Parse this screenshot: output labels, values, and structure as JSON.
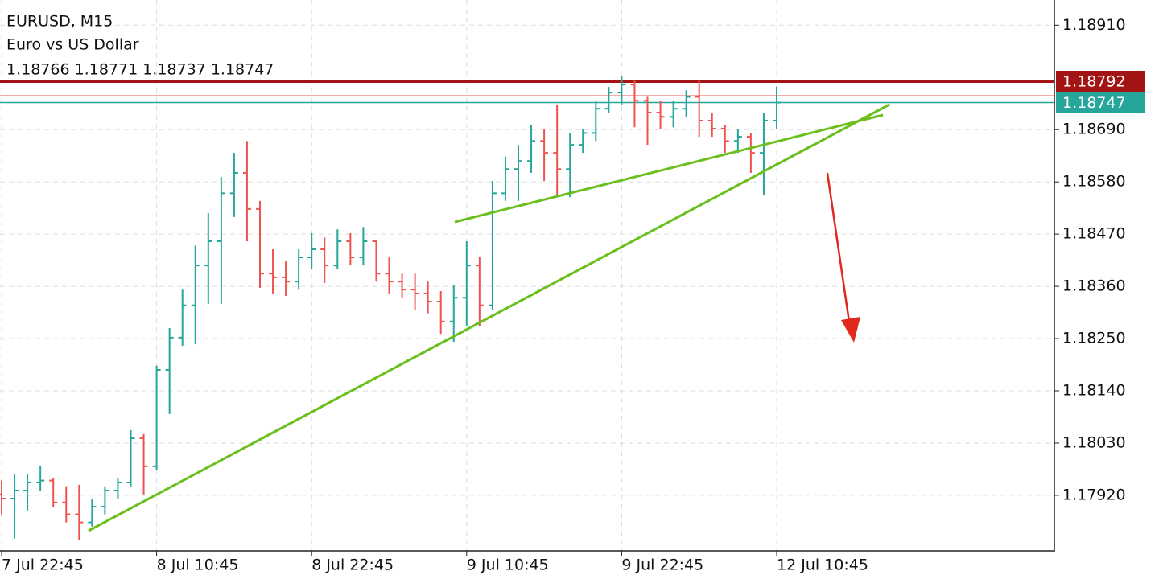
{
  "chart_data": {
    "type": "ohlc",
    "title": "EURUSD, M15",
    "subtitle": "Euro vs US Dollar",
    "ohlc_info": "1.18766 1.18771 1.18737 1.18747",
    "up_color": "#26a69a",
    "down_color": "#ef5350",
    "grid": true,
    "categories": [
      "7 Jul 22:45",
      null,
      null,
      null,
      null,
      null,
      null,
      null,
      null,
      null,
      null,
      null,
      "8 Jul 10:45",
      null,
      null,
      null,
      null,
      null,
      null,
      null,
      null,
      null,
      null,
      null,
      "8 Jul 22:45",
      null,
      null,
      null,
      null,
      null,
      null,
      null,
      null,
      null,
      null,
      null,
      "9 Jul 10:45",
      null,
      null,
      null,
      null,
      null,
      null,
      null,
      null,
      null,
      null,
      null,
      "9 Jul 22:45",
      null,
      null,
      null,
      null,
      null,
      null,
      null,
      null,
      null,
      null,
      null,
      "12 Jul 10:45"
    ],
    "open": [
      1.17922,
      1.17913,
      1.1793,
      1.17947,
      1.17951,
      1.17905,
      1.1788,
      1.17863,
      1.17896,
      1.1793,
      1.17947,
      1.1804,
      1.17981,
      1.18184,
      1.18252,
      1.1832,
      1.18404,
      1.18455,
      1.18556,
      1.18599,
      1.18523,
      1.18387,
      1.18379,
      1.1837,
      1.18421,
      1.18438,
      1.18404,
      1.18455,
      1.18421,
      1.18455,
      1.18387,
      1.1837,
      1.18353,
      1.18345,
      1.18328,
      1.18286,
      1.18336,
      1.18404,
      1.1832,
      1.18556,
      1.18607,
      1.18624,
      1.18666,
      1.18641,
      1.18607,
      1.18658,
      1.18683,
      1.18734,
      1.18768,
      1.18785,
      1.18751,
      1.18726,
      1.18717,
      1.18734,
      1.18759,
      1.18709,
      1.18692,
      1.18666,
      1.18675,
      1.18641,
      1.18709
    ],
    "high": [
      1.17951,
      1.17964,
      1.17964,
      1.17981,
      1.17956,
      1.17939,
      1.17942,
      1.17913,
      1.17939,
      1.17956,
      1.18057,
      1.18049,
      1.18193,
      1.18272,
      1.18353,
      1.18446,
      1.18514,
      1.1859,
      1.18641,
      1.18666,
      1.1854,
      1.18438,
      1.18413,
      1.18438,
      1.18472,
      1.18463,
      1.1848,
      1.18472,
      1.18485,
      1.18458,
      1.18421,
      1.18387,
      1.18387,
      1.1837,
      1.1835,
      1.18362,
      1.18455,
      1.18421,
      1.18582,
      1.18633,
      1.18658,
      1.187,
      1.18692,
      1.18743,
      1.18683,
      1.18692,
      1.18751,
      1.1878,
      1.18802,
      1.18793,
      1.18759,
      1.18751,
      1.18751,
      1.18773,
      1.18793,
      1.18726,
      1.187,
      1.18692,
      1.18683,
      1.18726,
      1.18781
    ],
    "low": [
      1.1788,
      1.17829,
      1.17888,
      1.1793,
      1.17896,
      1.17863,
      1.17825,
      1.17854,
      1.1788,
      1.17913,
      1.17939,
      1.17922,
      1.17973,
      1.18091,
      1.18235,
      1.18238,
      1.18323,
      1.18323,
      1.18506,
      1.18455,
      1.18357,
      1.18345,
      1.1834,
      1.18353,
      1.18396,
      1.18367,
      1.18396,
      1.18404,
      1.18404,
      1.1837,
      1.18345,
      1.18336,
      1.18311,
      1.18303,
      1.1826,
      1.18243,
      1.18277,
      1.18277,
      1.18311,
      1.1854,
      1.1854,
      1.18599,
      1.18582,
      1.18548,
      1.18548,
      1.18641,
      1.18666,
      1.18726,
      1.18743,
      1.18695,
      1.18658,
      1.18692,
      1.18695,
      1.18717,
      1.18675,
      1.18675,
      1.18641,
      1.18641,
      1.18599,
      1.18553,
      1.18692
    ],
    "close": [
      1.17913,
      1.1793,
      1.17947,
      1.17951,
      1.17905,
      1.1788,
      1.17863,
      1.17896,
      1.1793,
      1.17947,
      1.1804,
      1.17981,
      1.18184,
      1.18252,
      1.1832,
      1.18404,
      1.18455,
      1.18556,
      1.18599,
      1.18523,
      1.18387,
      1.18379,
      1.1837,
      1.18421,
      1.18438,
      1.18404,
      1.18455,
      1.18421,
      1.18455,
      1.18387,
      1.1837,
      1.18353,
      1.18345,
      1.18328,
      1.18286,
      1.18336,
      1.18404,
      1.1832,
      1.18556,
      1.18607,
      1.18624,
      1.18666,
      1.18641,
      1.18607,
      1.18658,
      1.18683,
      1.18734,
      1.18768,
      1.18785,
      1.18751,
      1.18726,
      1.18717,
      1.18734,
      1.18759,
      1.18709,
      1.18692,
      1.18666,
      1.18675,
      1.18641,
      1.18709,
      1.18747
    ],
    "ylim": [
      1.17803,
      1.18963
    ],
    "yticks": [
      {
        "value": 1.1891,
        "label": "1.18910"
      },
      {
        "value": 1.1869,
        "label": "1.18690"
      },
      {
        "value": 1.1858,
        "label": "1.18580"
      },
      {
        "value": 1.1847,
        "label": "1.18470"
      },
      {
        "value": 1.1836,
        "label": "1.18360"
      },
      {
        "value": 1.1825,
        "label": "1.18250"
      },
      {
        "value": 1.1814,
        "label": "1.18140"
      },
      {
        "value": 1.1803,
        "label": "1.18030"
      },
      {
        "value": 1.1792,
        "label": "1.17920"
      }
    ],
    "price_lines": [
      {
        "value": 1.18792,
        "label": "1.18792",
        "color": "#a31515"
      },
      {
        "value": 1.18761,
        "color": "#ef5350"
      },
      {
        "value": 1.18747,
        "label": "1.18747",
        "color": "#26a69a"
      }
    ]
  }
}
